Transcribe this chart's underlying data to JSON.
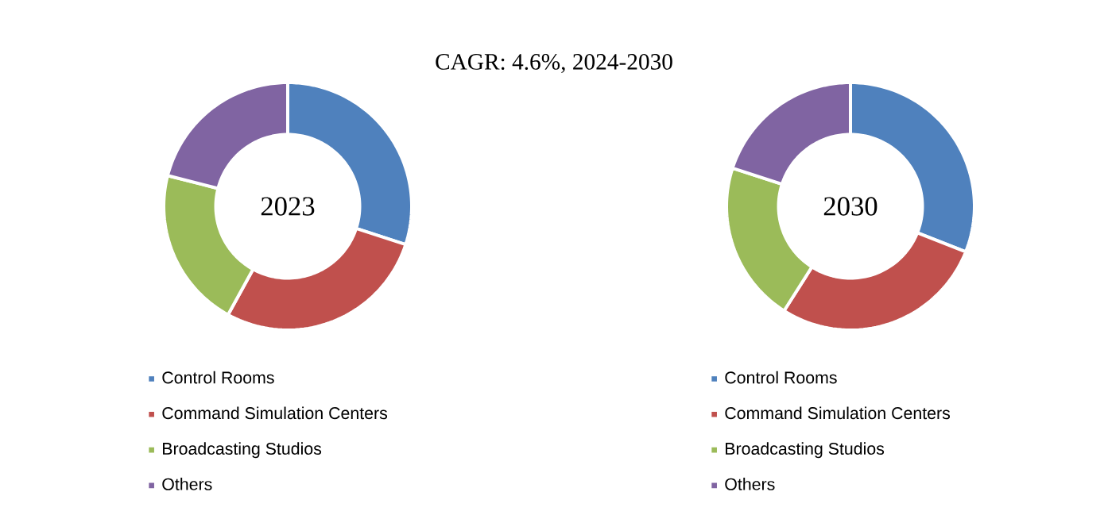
{
  "chart_data": [
    {
      "type": "donut",
      "title": "2023",
      "annotations": [
        "CAGR: 4.6%, 2024-2030"
      ],
      "categories": [
        "Control Rooms",
        "Command Simulation Centers",
        "Broadcasting Studios",
        "Others"
      ],
      "values": [
        30,
        28,
        21,
        21
      ],
      "colors": [
        "#4f81bd",
        "#c0504d",
        "#9bbb59",
        "#8064a2"
      ],
      "legend": "bottom"
    },
    {
      "type": "donut",
      "title": "2030",
      "categories": [
        "Control Rooms",
        "Command Simulation Centers",
        "Broadcasting Studios",
        "Others"
      ],
      "values": [
        31,
        28,
        21,
        20
      ],
      "colors": [
        "#4f81bd",
        "#c0504d",
        "#9bbb59",
        "#8064a2"
      ],
      "legend": "bottom"
    }
  ]
}
